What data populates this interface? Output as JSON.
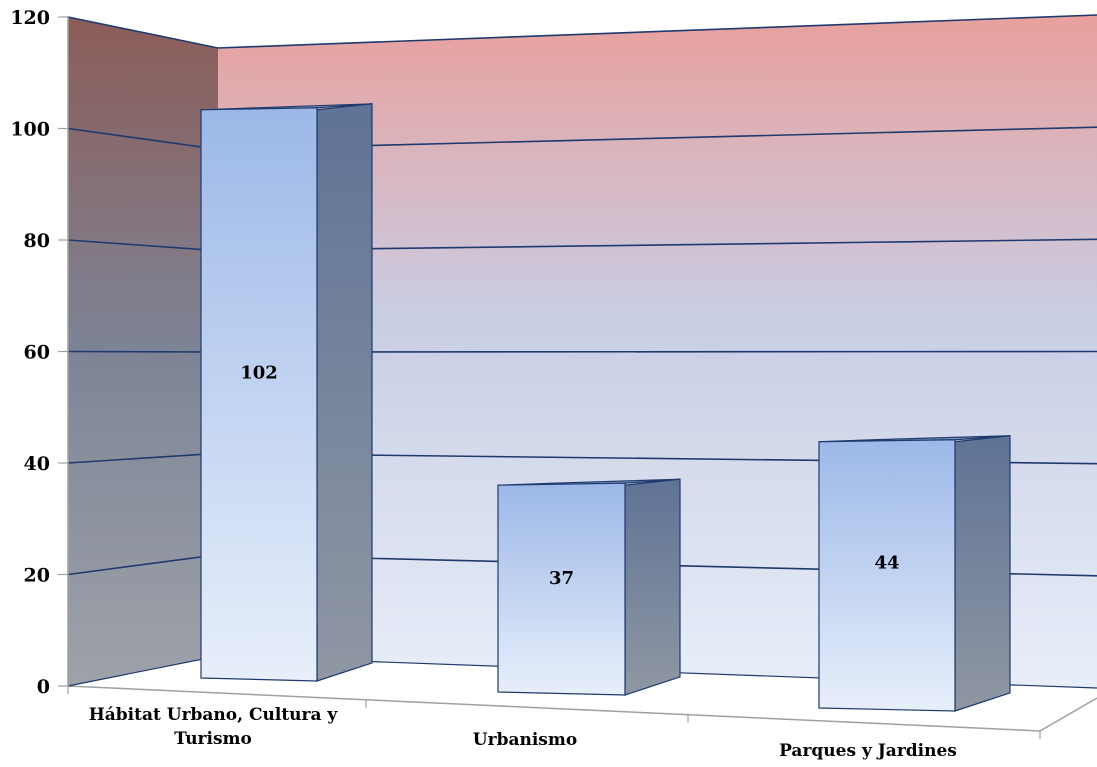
{
  "chart_data": {
    "type": "bar",
    "style": "3d-column",
    "title": "",
    "xlabel": "",
    "ylabel": "",
    "categories": [
      [
        "Hábitat Urbano, Cultura y",
        "Turismo"
      ],
      [
        "Urbanismo"
      ],
      [
        "Parques y Jardines"
      ]
    ],
    "values": [
      102,
      37,
      44
    ],
    "data_labels": [
      "102",
      "37",
      "44"
    ],
    "ylim": [
      0,
      120
    ],
    "y_ticks": [
      "0",
      "20",
      "40",
      "60",
      "80",
      "100",
      "120"
    ],
    "grid": true,
    "legend": "none",
    "colors": {
      "bar_front_top": "#9db9e8",
      "bar_front_bottom": "#e6eefa",
      "bar_side": "#6a7da0",
      "bar_top": "#7f97c4",
      "bar_outline": "#1f3a6e",
      "grid_line": "#1f3a6e",
      "back_wall_top": "#e8a09c",
      "back_wall_bottom": "#e4ebf7",
      "side_wall_top": "#8a5c58",
      "side_wall_bottom": "#9aa0a8",
      "axis_line": "#a0a0a0"
    }
  }
}
